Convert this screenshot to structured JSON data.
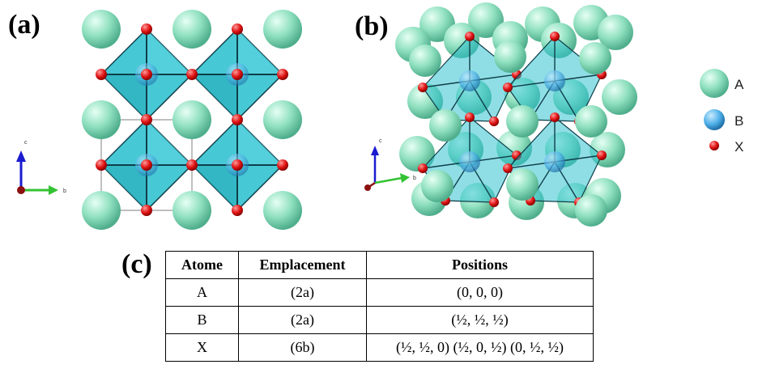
{
  "panels": {
    "a": "(a)",
    "b": "(b)",
    "c": "(c)"
  },
  "axes": {
    "c": "c",
    "b": "b"
  },
  "legend": [
    {
      "symbol": "A",
      "color": "#8fe0bf"
    },
    {
      "symbol": "B",
      "color": "#4fb0e8"
    },
    {
      "symbol": "X",
      "color": "#e01414"
    }
  ],
  "table": {
    "headers": [
      "Atome",
      "Emplacement",
      "Positions"
    ],
    "rows": [
      [
        "A",
        "(2a)",
        "(0, 0, 0)"
      ],
      [
        "B",
        "(2a)",
        "(½, ½, ½)"
      ],
      [
        "X",
        "(6b)",
        "(½, ½, 0) (½, 0, ½) (0, ½, ½)"
      ]
    ]
  },
  "colors": {
    "octahedron": "#33c2d0",
    "a_atom": "#8fe0bf",
    "b_atom": "#4fb0e8",
    "x_atom": "#e01414"
  }
}
